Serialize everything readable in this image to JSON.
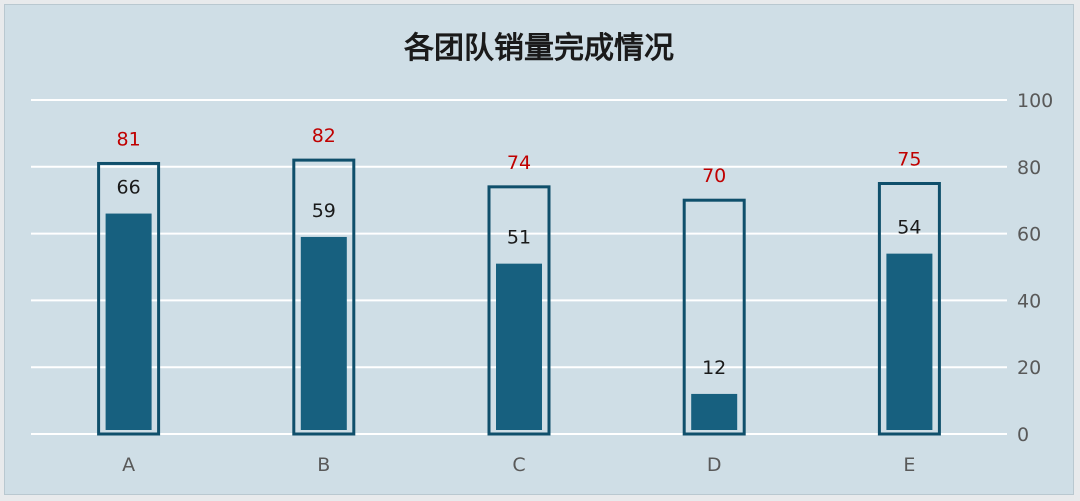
{
  "chart_data": {
    "type": "bar",
    "title": "各团队销量完成情况",
    "categories": [
      "A",
      "B",
      "C",
      "D",
      "E"
    ],
    "series": [
      {
        "values": [
          81,
          82,
          74,
          70,
          75
        ]
      },
      {
        "values": [
          66,
          59,
          51,
          12,
          54
        ]
      }
    ],
    "ylim": [
      0,
      100
    ],
    "y_ticks": [
      0,
      20,
      40,
      60,
      80,
      100
    ],
    "y_axis_side": "right",
    "grid": true,
    "legend": "none",
    "colors": {
      "background": "#cfdee6",
      "bar_fill": "#17607f",
      "target_outline": "#0f4f6b",
      "target_label": "#c00000",
      "actual_label": "#1a1a1a",
      "gridline": "#ffffff"
    }
  }
}
